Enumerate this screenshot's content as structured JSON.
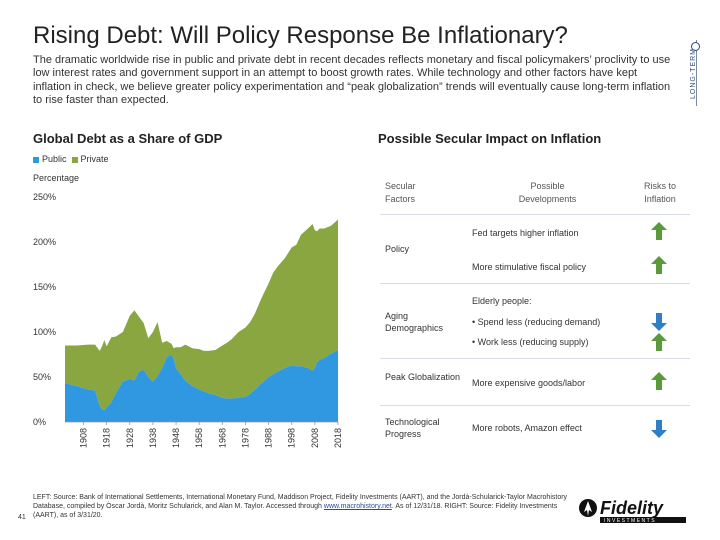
{
  "header": {
    "title": "Rising Debt: Will Policy Response Be Inflationary?",
    "lead": "The dramatic worldwide rise in public and private debt in recent decades reflects monetary and fiscal policymakers’ proclivity to use low interest rates and government support in an attempt to boost growth rates. While technology and other factors have kept inflation in check, we believe greater policy experimentation and “peak globalization” trends will eventually cause long-term inflation to rise faster than expected.",
    "side_tag": "LONG-TERM"
  },
  "left_panel": {
    "heading": "Global Debt as a Share of GDP",
    "legend_public": "Public",
    "legend_private": "Private"
  },
  "right_panel": {
    "heading": "Possible Secular Impact on Inflation",
    "col_factors": "Secular Factors",
    "col_developments": "Possible Developments",
    "col_risks": "Risks to Inflation",
    "rows": [
      {
        "factor": "Policy",
        "developments": [
          "Fed targets higher inflation",
          "More stimulative fiscal policy"
        ],
        "risks": [
          "up",
          "up"
        ]
      },
      {
        "factor": "Aging Demographics",
        "developments": [
          "Elderly people:",
          "•  Spend less (reducing demand)",
          "•  Work less (reducing supply)"
        ],
        "risks": [
          "down",
          "up"
        ]
      },
      {
        "factor": "Peak Globalization",
        "developments": [
          "More expensive goods/labor"
        ],
        "risks": [
          "up"
        ]
      },
      {
        "factor": "Technological Progress",
        "developments": [
          "More robots, Amazon effect"
        ],
        "risks": [
          "down"
        ]
      }
    ]
  },
  "footer": {
    "source_text": "LEFT: Source: Bank of International Settlements, International Monetary Fund, Maddison Project, Fidelity Investments (AART), and the Jordà-Schularick-Taylor Macrohistory Database, compiled by Òscar Jordà, Moritz Schularick, and Alan M. Taylor. Accessed through",
    "source_link": "www.macrohistory.net",
    "source_tail": ". As of 12/31/18. RIGHT: Source: Fidelity Investments (AART), as of 3/31/20.",
    "page_number": "41",
    "logo_text": "Fidelity",
    "logo_subtext": "INVESTMENTS"
  },
  "colors": {
    "public": "#2f98e0",
    "private": "#8aa640",
    "up_arrow": "#5a9a3a",
    "down_arrow": "#2f7fc8"
  },
  "chart_data": {
    "type": "area",
    "stacked": true,
    "ylabel": "Percentage",
    "ylim": [
      0,
      250
    ],
    "y_ticks": [
      "0%",
      "50%",
      "100%",
      "150%",
      "200%",
      "250%"
    ],
    "y_tick_values": [
      0,
      50,
      100,
      150,
      200,
      250
    ],
    "xlim": [
      1900,
      2018
    ],
    "x_ticks": [
      "1908",
      "1918",
      "1928",
      "1938",
      "1948",
      "1958",
      "1968",
      "1978",
      "1988",
      "1998",
      "2008",
      "2018"
    ],
    "x": [
      1900,
      1905,
      1910,
      1913,
      1915,
      1916,
      1917,
      1918,
      1920,
      1922,
      1925,
      1928,
      1930,
      1932,
      1934,
      1936,
      1938,
      1940,
      1942,
      1944,
      1946,
      1947,
      1948,
      1950,
      1952,
      1955,
      1958,
      1960,
      1962,
      1965,
      1968,
      1970,
      1972,
      1975,
      1978,
      1980,
      1982,
      1985,
      1988,
      1990,
      1992,
      1995,
      1998,
      2000,
      2002,
      2005,
      2007,
      2008,
      2009,
      2010,
      2012,
      2015,
      2018
    ],
    "series": [
      {
        "name": "Public",
        "values": [
          43,
          40,
          36,
          35,
          18,
          14,
          13,
          16,
          22,
          32,
          45,
          48,
          46,
          56,
          58,
          50,
          45,
          51,
          60,
          72,
          75,
          70,
          60,
          53,
          46,
          40,
          36,
          34,
          32,
          30,
          27,
          26,
          26,
          27,
          28,
          31,
          36,
          43,
          50,
          53,
          56,
          60,
          63,
          62,
          62,
          60,
          57,
          60,
          67,
          69,
          71,
          76,
          80
        ]
      },
      {
        "name": "Private",
        "values": [
          42,
          45,
          50,
          51,
          61,
          70,
          78,
          68,
          72,
          63,
          55,
          70,
          78,
          61,
          52,
          43,
          55,
          60,
          28,
          18,
          12,
          12,
          23,
          30,
          40,
          42,
          45,
          45,
          47,
          50,
          58,
          62,
          66,
          73,
          77,
          80,
          84,
          95,
          104,
          113,
          117,
          122,
          131,
          135,
          146,
          155,
          163,
          153,
          145,
          146,
          144,
          142,
          145
        ]
      }
    ]
  }
}
